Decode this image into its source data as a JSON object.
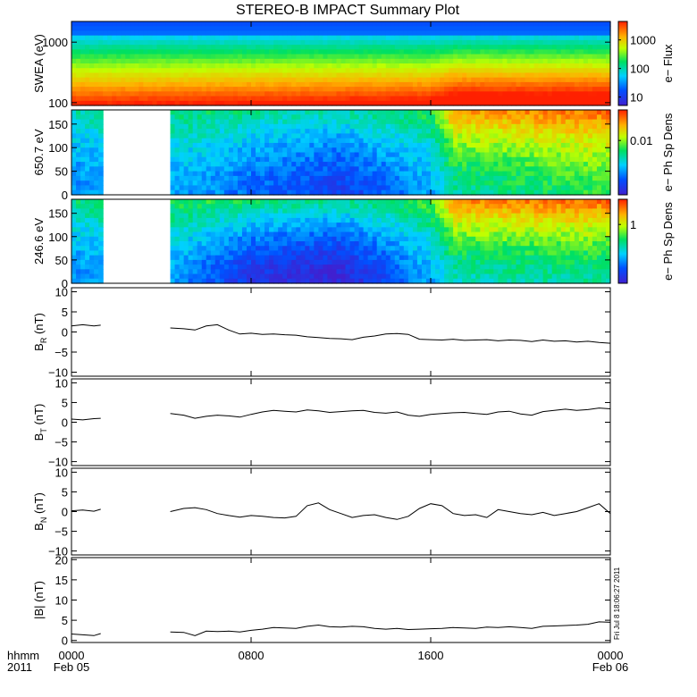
{
  "chart_data": {
    "type": "multi-panel time series",
    "title": "STEREO-B IMPACT Summary Plot",
    "time": {
      "unit": "hours since 2011 Feb 05 0000 UT",
      "range": [
        0,
        24
      ],
      "gap": [
        1.4,
        4.4
      ],
      "ticks": [
        {
          "h": 0,
          "hhmm": "0000",
          "date": "Feb 05"
        },
        {
          "h": 8,
          "hhmm": "0800",
          "date": ""
        },
        {
          "h": 16,
          "hhmm": "1600",
          "date": ""
        },
        {
          "h": 24,
          "hhmm": "0000",
          "date": "Feb 06"
        }
      ],
      "left_label_top": "hhmm",
      "left_label_bottom": "2011"
    },
    "panels": [
      {
        "id": "swea",
        "type": "heatmap",
        "ylabel": "SWEA (eV)",
        "yscale": "log",
        "ylim": [
          90,
          2200
        ],
        "yticks": [
          {
            "v": 100,
            "label": "100"
          },
          {
            "v": 1000,
            "label": "1000"
          }
        ],
        "colorbar_label": "e− Flux",
        "colorbar_ticks": [
          "1000",
          "100",
          "10"
        ],
        "colormap": "rainbow",
        "description_points": {
          "hours": [
            0,
            16,
            17,
            24
          ],
          "brightness_shift": [
            0,
            0.05,
            0.12,
            0.12
          ]
        }
      },
      {
        "id": "pad650",
        "type": "heatmap",
        "ylabel": "650.7 eV",
        "ylim": [
          0,
          180
        ],
        "yticks": [
          {
            "v": 0,
            "label": "0"
          },
          {
            "v": 50,
            "label": "50"
          },
          {
            "v": 100,
            "label": "100"
          },
          {
            "v": 150,
            "label": "150"
          }
        ],
        "colorbar_label": "e− Ph Sp Dens",
        "colorbar_ticks": [
          "0.01"
        ],
        "colormap": "rainbow",
        "level_profile": {
          "hours": [
            0,
            4.4,
            6,
            8,
            10,
            12,
            14,
            16,
            17,
            20,
            24
          ],
          "low_pitch": [
            0.25,
            0.3,
            0.28,
            0.2,
            0.18,
            0.12,
            0.2,
            0.3,
            0.45,
            0.5,
            0.55
          ],
          "high_pitch": [
            0.45,
            0.5,
            0.5,
            0.48,
            0.45,
            0.45,
            0.5,
            0.55,
            0.85,
            0.88,
            0.92
          ]
        }
      },
      {
        "id": "pad246",
        "type": "heatmap",
        "ylabel": "246.6 eV",
        "ylim": [
          0,
          180
        ],
        "yticks": [
          {
            "v": 0,
            "label": "0"
          },
          {
            "v": 50,
            "label": "50"
          },
          {
            "v": 100,
            "label": "100"
          },
          {
            "v": 150,
            "label": "150"
          }
        ],
        "colorbar_label": "e− Ph Sp Dens",
        "colorbar_ticks": [
          "1"
        ],
        "colormap": "rainbow",
        "level_profile": {
          "hours": [
            0,
            4.4,
            6,
            8,
            10,
            12,
            14,
            16,
            17,
            20,
            24
          ],
          "low_pitch": [
            0.25,
            0.3,
            0.2,
            0.08,
            0.05,
            0.02,
            0.15,
            0.3,
            0.42,
            0.45,
            0.45
          ],
          "high_pitch": [
            0.5,
            0.55,
            0.55,
            0.52,
            0.5,
            0.48,
            0.52,
            0.6,
            0.88,
            0.9,
            0.93
          ]
        }
      },
      {
        "id": "br",
        "type": "line",
        "ylabel": "B",
        "ylabel_sub": "R",
        "ylabel_unit": " (nT)",
        "ylim": [
          -11,
          11
        ],
        "yticks": [
          {
            "v": -10,
            "label": "−10"
          },
          {
            "v": -5,
            "label": "−5"
          },
          {
            "v": 0,
            "label": "0"
          },
          {
            "v": 5,
            "label": "5"
          },
          {
            "v": 10,
            "label": "10"
          }
        ],
        "x": [
          0,
          0.5,
          1.0,
          1.3,
          4.4,
          5.0,
          5.5,
          6.0,
          6.5,
          7.0,
          7.5,
          8.0,
          8.5,
          9.0,
          9.5,
          10.0,
          10.5,
          11.0,
          11.5,
          12.0,
          12.5,
          13.0,
          13.5,
          14.0,
          14.5,
          15.0,
          15.5,
          16.0,
          16.5,
          17.0,
          17.5,
          18.0,
          18.5,
          19.0,
          19.5,
          20.0,
          20.5,
          21.0,
          21.5,
          22.0,
          22.5,
          23.0,
          23.5,
          24.0
        ],
        "y": [
          1.5,
          1.8,
          1.5,
          1.7,
          1.0,
          0.8,
          0.5,
          1.5,
          1.8,
          0.5,
          -0.5,
          -0.3,
          -0.6,
          -0.5,
          -0.7,
          -0.8,
          -1.2,
          -1.4,
          -1.6,
          -1.7,
          -1.9,
          -1.3,
          -1.0,
          -0.5,
          -0.4,
          -0.6,
          -1.8,
          -1.9,
          -2.0,
          -1.8,
          -2.1,
          -2.0,
          -1.9,
          -2.2,
          -2.0,
          -2.1,
          -2.4,
          -2.0,
          -2.3,
          -2.2,
          -2.5,
          -2.3,
          -2.6,
          -2.8
        ]
      },
      {
        "id": "bt",
        "type": "line",
        "ylabel": "B",
        "ylabel_sub": "T",
        "ylabel_unit": " (nT)",
        "ylim": [
          -11,
          11
        ],
        "yticks": [
          {
            "v": -10,
            "label": "−10"
          },
          {
            "v": -5,
            "label": "−5"
          },
          {
            "v": 0,
            "label": "0"
          },
          {
            "v": 5,
            "label": "5"
          },
          {
            "v": 10,
            "label": "10"
          }
        ],
        "x": [
          0,
          0.5,
          1.0,
          1.3,
          4.4,
          5.0,
          5.5,
          6.0,
          6.5,
          7.0,
          7.5,
          8.0,
          8.5,
          9.0,
          9.5,
          10.0,
          10.5,
          11.0,
          11.5,
          12.0,
          12.5,
          13.0,
          13.5,
          14.0,
          14.5,
          15.0,
          15.5,
          16.0,
          16.5,
          17.0,
          17.5,
          18.0,
          18.5,
          19.0,
          19.5,
          20.0,
          20.5,
          21.0,
          21.5,
          22.0,
          22.5,
          23.0,
          23.5,
          24.0
        ],
        "y": [
          0.8,
          0.6,
          0.9,
          1.0,
          2.2,
          1.8,
          1.0,
          1.5,
          1.8,
          1.6,
          1.3,
          2.0,
          2.6,
          3.0,
          2.8,
          2.6,
          3.1,
          2.9,
          2.5,
          2.7,
          2.9,
          3.0,
          2.5,
          2.3,
          2.6,
          1.8,
          1.5,
          2.0,
          2.2,
          2.4,
          2.5,
          2.2,
          2.0,
          2.6,
          2.8,
          2.1,
          1.8,
          2.7,
          3.0,
          3.3,
          3.0,
          3.2,
          3.6,
          3.4
        ]
      },
      {
        "id": "bn",
        "type": "line",
        "ylabel": "B",
        "ylabel_sub": "N",
        "ylabel_unit": " (nT)",
        "ylim": [
          -11,
          11
        ],
        "yticks": [
          {
            "v": -10,
            "label": "−10"
          },
          {
            "v": -5,
            "label": "−5"
          },
          {
            "v": 0,
            "label": "0"
          },
          {
            "v": 5,
            "label": "5"
          },
          {
            "v": 10,
            "label": "10"
          }
        ],
        "x": [
          0,
          0.5,
          1.0,
          1.3,
          4.4,
          5.0,
          5.5,
          6.0,
          6.5,
          7.0,
          7.5,
          8.0,
          8.5,
          9.0,
          9.5,
          10.0,
          10.5,
          11.0,
          11.5,
          12.0,
          12.5,
          13.0,
          13.5,
          14.0,
          14.5,
          15.0,
          15.5,
          16.0,
          16.5,
          17.0,
          17.5,
          18.0,
          18.5,
          19.0,
          19.5,
          20.0,
          20.5,
          21.0,
          21.5,
          22.0,
          22.5,
          23.0,
          23.5,
          24.0
        ],
        "y": [
          0.2,
          0.4,
          0.1,
          0.6,
          0.0,
          0.8,
          1.0,
          0.5,
          -0.5,
          -1.0,
          -1.4,
          -1.0,
          -1.2,
          -1.5,
          -1.6,
          -1.2,
          1.5,
          2.2,
          0.5,
          -0.5,
          -1.5,
          -1.0,
          -0.8,
          -1.5,
          -2.0,
          -1.2,
          0.8,
          2.0,
          1.5,
          -0.5,
          -1.0,
          -0.8,
          -1.5,
          0.5,
          0.0,
          -0.5,
          -0.8,
          -0.2,
          -1.0,
          -0.5,
          0.0,
          1.0,
          2.0,
          -0.5
        ]
      },
      {
        "id": "bmag",
        "type": "line",
        "ylabel": "|B| (nT)",
        "ylim": [
          -0.5,
          20.5
        ],
        "yticks": [
          {
            "v": 0,
            "label": "0"
          },
          {
            "v": 5,
            "label": "5"
          },
          {
            "v": 10,
            "label": "10"
          },
          {
            "v": 15,
            "label": "15"
          },
          {
            "v": 20,
            "label": "20"
          }
        ],
        "x": [
          0,
          0.5,
          1.0,
          1.3,
          4.4,
          5.0,
          5.5,
          6.0,
          6.5,
          7.0,
          7.5,
          8.0,
          8.5,
          9.0,
          9.5,
          10.0,
          10.5,
          11.0,
          11.5,
          12.0,
          12.5,
          13.0,
          13.5,
          14.0,
          14.5,
          15.0,
          15.5,
          16.0,
          16.5,
          17.0,
          17.5,
          18.0,
          18.5,
          19.0,
          19.5,
          20.0,
          20.5,
          21.0,
          21.5,
          22.0,
          22.5,
          23.0,
          23.5,
          24.0
        ],
        "y": [
          1.6,
          1.4,
          1.2,
          1.7,
          2.1,
          2.0,
          1.2,
          2.3,
          2.2,
          2.3,
          2.1,
          2.5,
          2.8,
          3.2,
          3.1,
          3.0,
          3.5,
          3.8,
          3.4,
          3.3,
          3.5,
          3.4,
          3.0,
          2.8,
          3.0,
          2.7,
          2.8,
          2.9,
          3.0,
          3.2,
          3.1,
          3.0,
          3.3,
          3.2,
          3.4,
          3.2,
          3.0,
          3.5,
          3.6,
          3.7,
          3.8,
          4.0,
          4.6,
          4.5
        ]
      }
    ],
    "timestamp_label": "Fri Jul  8 18:06:27 2011"
  }
}
